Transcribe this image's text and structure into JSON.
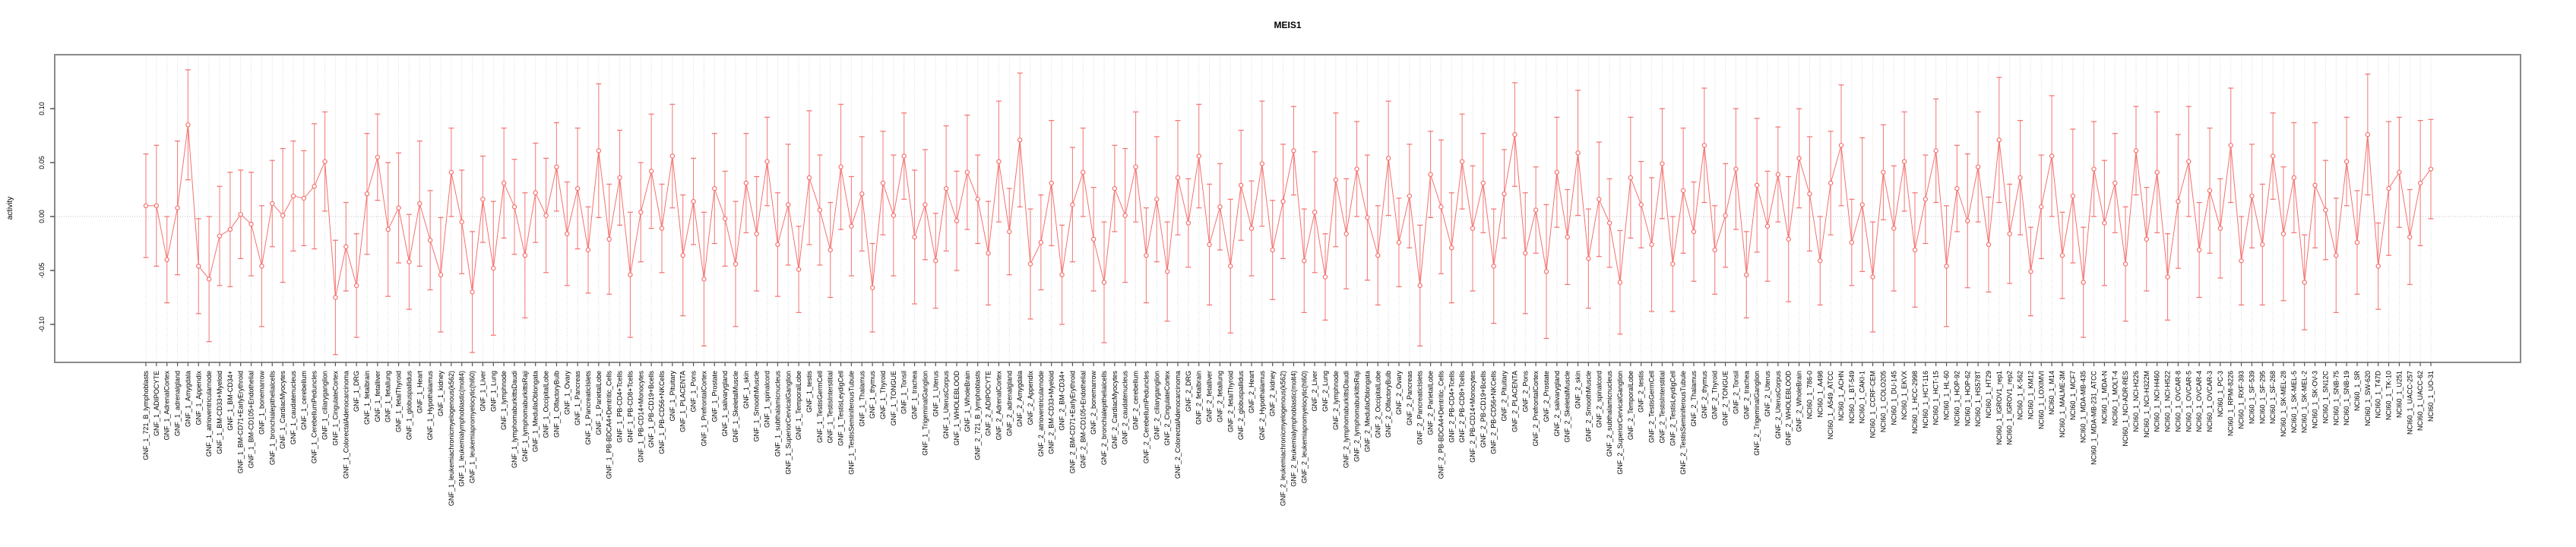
{
  "page": {
    "background": "#ffffff"
  },
  "chart_data": {
    "type": "line",
    "title": "MEIS1",
    "ylabel": "activity",
    "xlabel": "",
    "ylim": [
      -0.135,
      0.15
    ],
    "yticks": [
      -0.1,
      -0.05,
      0.0,
      0.05,
      0.1
    ],
    "grid": "vertical dotted gridline per category; dotted horizontal line at 0.00",
    "legend": "none",
    "point_style": "open circle with error bars, connected by line",
    "series_color": "#f4716e",
    "grid_color": "#d9d9d9",
    "zero_line_color": "#c2c2c2",
    "axis_color": "#8a8a8a",
    "text_color": "#000000",
    "categories": [
      "GNF_1_721_B_lymphoblasts",
      "GNF_1_ADIPOCYTE",
      "GNF_1_AdrenalCortex",
      "GNF_1_adrenalgland",
      "GNF_1_Amygdala",
      "GNF_1_Appendix",
      "GNF_1_atrioventricularnode",
      "GNF_1_BM-CD33+Myeloid",
      "GNF_1_BM-CD34+",
      "GNF_1_BM-CD71+EarlyErythroid",
      "GNF_1_BM-CD105+Endothelial",
      "GNF_1_bonemarrow",
      "GNF_1_bronchialepithelialcells",
      "GNF_1_CardiacMyocytes",
      "GNF_1_caudatenucleus",
      "GNF_1_cerebellum",
      "GNF_1_CerebellumPeduncles",
      "GNF_1_ciliaryganglion",
      "GNF_1_CingulateCortex",
      "GNF_1_ColorectalAdenocarcinoma",
      "GNF_1_DRG",
      "GNF_1_fetalbrain",
      "GNF_1_fetalliver",
      "GNF_1_fetallung",
      "GNF_1_fetalThyroid",
      "GNF_1_globuspallidus",
      "GNF_1_Heart",
      "GNF_1_Hypothalamus",
      "GNF_1_kidney",
      "GNF_1_leukemiachronicmyelogenous(k562)",
      "GNF_1_leukemialymphoblastic(molt4)",
      "GNF_1_leukemiapromyelocytic(hl60)",
      "GNF_1_Liver",
      "GNF_1_Lung",
      "GNF_1_lymphnode",
      "GNF_1_lymphomaburkittsDaudi",
      "GNF_1_lymphomaburkittsRaji",
      "GNF_1_MedullaOblongata",
      "GNF_1_OccipitalLobe",
      "GNF_1_OlfactoryBulb",
      "GNF_1_Ovary",
      "GNF_1_Pancreas",
      "GNF_1_PancreaticIslets",
      "GNF_1_ParietalLobe",
      "GNF_1_PB-BDCA4+Dentritic_Cells",
      "GNF_1_PB-CD4+Tcells",
      "GNF_1_PB-CD8+Tcells",
      "GNF_1_PB-CD14+Monocytes",
      "GNF_1_PB-CD19+Bcells",
      "GNF_1_PB-CD56+NKCells",
      "GNF_1_Pituitary",
      "GNF_1_PLACENTA",
      "GNF_1_Pons",
      "GNF_1_PrefrontalCortex",
      "GNF_1_Prostate",
      "GNF_1_salivarygland",
      "GNF_1_SkeletalMuscle",
      "GNF_1_skin",
      "GNF_1_SmoothMuscle",
      "GNF_1_spinalcord",
      "GNF_1_subthalamicnucleus",
      "GNF_1_SuperiorCervicalGanglion",
      "GNF_1_TemporalLobe",
      "GNF_1_testis",
      "GNF_1_TestisGermCell",
      "GNF_1_TestisInterstitial",
      "GNF_1_TestisLeydigCell",
      "GNF_1_TestisSeminiferousTubule",
      "GNF_1_Thalamus",
      "GNF_1_thymus",
      "GNF_1_Thyroid",
      "GNF_1_TONGUE",
      "GNF_1_Tonsil",
      "GNF_1_trachea",
      "GNF_1_TrigeminalGanglion",
      "GNF_1_Uterus",
      "GNF_1_UterusCorpus",
      "GNF_1_WHOLEBLOOD",
      "GNF_1_WholeBrain",
      "GNF_2_721_B_lymphoblasts",
      "GNF_2_ADIPOCYTE",
      "GNF_2_AdrenalCortex",
      "GNF_2_adrenalgland",
      "GNF_2_Amygdala",
      "GNF_2_Appendix",
      "GNF_2_atrioventricularnode",
      "GNF_2_BM-CD33+Myeloid",
      "GNF_2_BM-CD34+",
      "GNF_2_BM-CD71+EarlyErythroid",
      "GNF_2_BM-CD105+Endothelial",
      "GNF_2_bonemarrow",
      "GNF_2_bronchialepithelialcells",
      "GNF_2_CardiacMyocytes",
      "GNF_2_caudatenucleus",
      "GNF_2_cerebellum",
      "GNF_2_CerebellumPeduncles",
      "GNF_2_ciliaryganglion",
      "GNF_2_CingulateCortex",
      "GNF_2_ColorectalAdenocarcinoma",
      "GNF_2_DRG",
      "GNF_2_fetalbrain",
      "GNF_2_fetalliver",
      "GNF_2_fetallung",
      "GNF_2_fetalThyroid",
      "GNF_2_globuspallidus",
      "GNF_2_Heart",
      "GNF_2_Hypothalamus",
      "GNF_2_kidney",
      "GNF_2_leukemiachronicmyelogenous(k562)",
      "GNF_2_leukemialymphoblastic(molt4)",
      "GNF_2_leukemiapromyelocytic(hl60)",
      "GNF_2_Liver",
      "GNF_2_Lung",
      "GNF_2_lymphnode",
      "GNF_2_lymphomaburkittsDaudi",
      "GNF_2_lymphomaburkittsRaji",
      "GNF_2_MedullaOblongata",
      "GNF_2_OccipitalLobe",
      "GNF_2_OlfactoryBulb",
      "GNF_2_Ovary",
      "GNF_2_Pancreas",
      "GNF_2_PancreaticIslets",
      "GNF_2_ParietalLobe",
      "GNF_2_PB-BDCA4+Dentritic_Cells",
      "GNF_2_PB-CD4+Tcells",
      "GNF_2_PB-CD8+Tcells",
      "GNF_2_PB-CD14+Monocytes",
      "GNF_2_PB-CD19+Bcells",
      "GNF_2_PB-CD56+NKCells",
      "GNF_2_Pituitary",
      "GNF_2_PLACENTA",
      "GNF_2_Pons",
      "GNF_2_PrefrontalCortex",
      "GNF_2_Prostate",
      "GNF_2_salivarygland",
      "GNF_2_SkeletalMuscle",
      "GNF_2_skin",
      "GNF_2_SmoothMuscle",
      "GNF_2_spinalcord",
      "GNF_2_subthalamicnucleus",
      "GNF_2_SuperiorCervicalGanglion",
      "GNF_2_TemporalLobe",
      "GNF_2_testis",
      "GNF_2_TestisGermCell",
      "GNF_2_TestisInterstitial",
      "GNF_2_TestisLeydigCell",
      "GNF_2_TestisSeminiferousTubule",
      "GNF_2_Thalamus",
      "GNF_2_thymus",
      "GNF_2_Thyroid",
      "GNF_2_TONGUE",
      "GNF_2_Tonsil",
      "GNF_2_trachea",
      "GNF_2_TrigeminalGanglion",
      "GNF_2_Uterus",
      "GNF_2_UterusCorpus",
      "GNF_2_WHOLEBLOOD",
      "GNF_2_WholeBrain",
      "NCI60_1_786-0",
      "NCI60_1_A498",
      "NCI60_1_A549_ATCC",
      "NCI60_1_ACHN",
      "NCI60_1_BT-549",
      "NCI60_1_CAKI-1",
      "NCI60_1_CCRF-CEM",
      "NCI60_1_COLO205",
      "NCI60_1_DU-145",
      "NCI60_1_EKVX",
      "NCI60_1_HCC-2998",
      "NCI60_1_HCT-116",
      "NCI60_1_HCT-15",
      "NCI60_1_HL-60",
      "NCI60_1_HOP-92",
      "NCI60_1_HOP-62",
      "NCI60_1_HS578T",
      "NCI60_1_HT29",
      "NCI60_1_IGROV1_rep1",
      "NCI60_1_IGROV1_rep2",
      "NCI60_1_K-562",
      "NCI60_1_KM12",
      "NCI60_1_LOXIMVI",
      "NCI60_1_M14",
      "NCI60_1_MALME-3M",
      "NCI60_1_MCF7",
      "NCI60_1_MDA-MB-435",
      "NCI60_1_MDA-MB-231_ATCC",
      "NCI60_1_MDA-N",
      "NCI60_1_MOLT-4",
      "NCI60_1_NCI-ADR-RES",
      "NCI60_1_NCI-H226",
      "NCI60_1_NCI-H322M",
      "NCI60_1_NCI-H460",
      "NCI60_1_NCI-H522",
      "NCI60_1_OVCAR-8",
      "NCI60_1_OVCAR-5",
      "NCI60_1_OVCAR-4",
      "NCI60_1_OVCAR-3",
      "NCI60_1_PC-3",
      "NCI60_1_RPMI-8226",
      "NCI60_1_RXF-393",
      "NCI60_1_SF-539",
      "NCI60_1_SF-295",
      "NCI60_1_SF-268",
      "NCI60_1_SK-MEL-28",
      "NCI60_1_SK-MEL-5",
      "NCI60_1_SK-MEL-2",
      "NCI60_1_SK-OV-3",
      "NCI60_1_SN12C",
      "NCI60_1_SNB-75",
      "NCI60_1_SNB-19",
      "NCI60_1_SR",
      "NCI60_1_SW-620",
      "NCI60_1_T47D",
      "NCI60_1_TK-10",
      "NCI60_1_U251",
      "NCI60_1_UACC-257",
      "NCI60_1_UACC-62",
      "NCI60_1_UO-31"
    ],
    "values": [
      0.01,
      0.01,
      -0.04,
      0.008,
      0.085,
      -0.046,
      -0.058,
      -0.018,
      -0.012,
      0.002,
      -0.007,
      -0.046,
      0.012,
      0.001,
      0.019,
      0.017,
      0.028,
      0.051,
      -0.075,
      -0.028,
      -0.064,
      0.021,
      0.055,
      -0.012,
      0.008,
      -0.042,
      0.012,
      -0.022,
      -0.054,
      0.041,
      -0.005,
      -0.07,
      0.016,
      -0.048,
      0.031,
      0.009,
      -0.036,
      0.022,
      0.001,
      0.046,
      -0.016,
      0.026,
      -0.031,
      0.061,
      -0.021,
      0.036,
      -0.054,
      0.004,
      0.042,
      -0.011,
      0.056,
      -0.036,
      0.014,
      -0.058,
      0.026,
      -0.002,
      -0.044,
      0.031,
      -0.016,
      0.051,
      -0.026,
      0.011,
      -0.049,
      0.036,
      0.006,
      -0.031,
      0.046,
      -0.009,
      0.021,
      -0.066,
      0.031,
      0.001,
      0.056,
      -0.019,
      0.011,
      -0.041,
      0.026,
      -0.004,
      0.041,
      0.016,
      -0.034,
      0.051,
      -0.014,
      0.071,
      -0.044,
      -0.024,
      0.031,
      -0.054,
      0.011,
      0.041,
      -0.021,
      -0.061,
      0.026,
      0.001,
      0.046,
      -0.036,
      0.016,
      -0.051,
      0.036,
      -0.006,
      0.056,
      -0.026,
      0.009,
      -0.046,
      0.029,
      -0.011,
      0.049,
      -0.031,
      0.014,
      0.061,
      -0.041,
      0.004,
      -0.056,
      0.034,
      -0.016,
      0.044,
      -0.001,
      -0.036,
      0.054,
      -0.024,
      0.019,
      -0.064,
      0.039,
      0.009,
      -0.029,
      0.051,
      -0.011,
      0.031,
      -0.046,
      0.021,
      0.076,
      -0.034,
      0.006,
      -0.051,
      0.041,
      -0.019,
      0.059,
      -0.039,
      0.016,
      -0.006,
      -0.061,
      0.036,
      0.011,
      -0.026,
      0.049,
      -0.044,
      0.024,
      -0.014,
      0.066,
      -0.031,
      0.001,
      0.044,
      -0.054,
      0.029,
      -0.009,
      0.039,
      -0.021,
      0.054,
      0.021,
      -0.041,
      0.031,
      0.066,
      -0.024,
      0.011,
      -0.056,
      0.041,
      -0.011,
      0.051,
      -0.031,
      0.016,
      0.061,
      -0.046,
      0.026,
      -0.004,
      0.046,
      -0.026,
      0.071,
      -0.016,
      0.036,
      -0.051,
      0.009,
      0.056,
      -0.036,
      0.019,
      -0.061,
      0.044,
      -0.006,
      0.031,
      -0.044,
      0.061,
      -0.021,
      0.041,
      -0.056,
      0.014,
      0.051,
      -0.031,
      0.024,
      -0.011,
      0.066,
      -0.041,
      0.019,
      -0.026,
      0.056,
      -0.016,
      0.036,
      -0.061,
      0.029,
      0.006,
      -0.036,
      0.051,
      -0.024,
      0.076,
      -0.046,
      0.026,
      0.041,
      -0.019,
      0.031,
      0.044
    ],
    "errors_note": "error-bar half heights (activity units), estimated from pixels; cycled across points",
    "errors": [
      0.048,
      0.056,
      0.04,
      0.062,
      0.051,
      0.044,
      0.058,
      0.046,
      0.053,
      0.041
    ]
  }
}
